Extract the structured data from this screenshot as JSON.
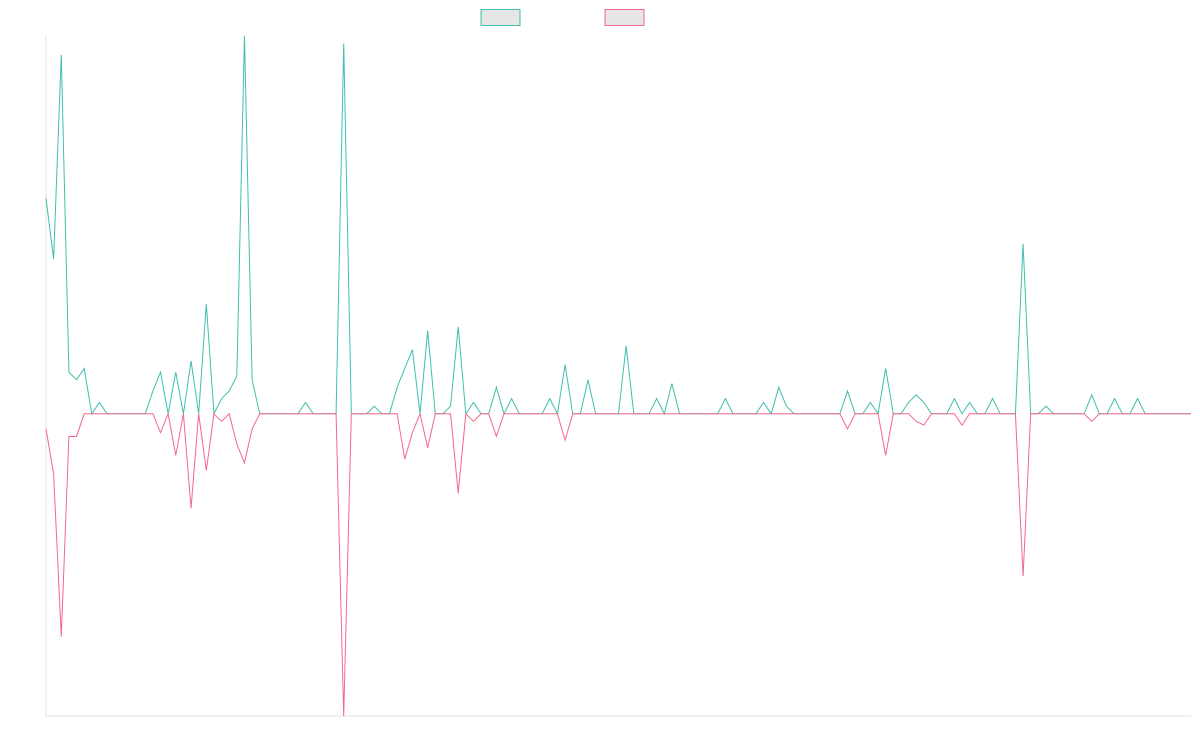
{
  "chart_data": {
    "type": "line",
    "categories": [
      null,
      null,
      null,
      null,
      null,
      null,
      null,
      null,
      null,
      null,
      null,
      null,
      null,
      null,
      null,
      null,
      null,
      null,
      null,
      null,
      null,
      null,
      null,
      null,
      null,
      null,
      null,
      null,
      null,
      null,
      null,
      null,
      null,
      null,
      null,
      null,
      null,
      null,
      null,
      null,
      null,
      null,
      null,
      null,
      null,
      null,
      null,
      null,
      null,
      null,
      null,
      null,
      null,
      null,
      null,
      null,
      null,
      null,
      null,
      null,
      null,
      null,
      null,
      null,
      null,
      null,
      null,
      null,
      null,
      null,
      null,
      null,
      null,
      null,
      null,
      null,
      null,
      null,
      null,
      null,
      null,
      null,
      null,
      null,
      null,
      null,
      null,
      null,
      null,
      null,
      null,
      null,
      null,
      null,
      null,
      null,
      null,
      null,
      null,
      null,
      null,
      null,
      null,
      null,
      null,
      null,
      null,
      null,
      null,
      null,
      null,
      null,
      null,
      null,
      null,
      null,
      null,
      null,
      null,
      null,
      null,
      null,
      null,
      null,
      null,
      null,
      null,
      null,
      null,
      null,
      null,
      null,
      null,
      null,
      null,
      null,
      null,
      null,
      null,
      null,
      null,
      null,
      null,
      null,
      null,
      null,
      null,
      null,
      null,
      null,
      null
    ],
    "series": [
      {
        "color": "#3fbfae",
        "values": [
          57,
          41,
          95,
          11,
          9,
          12,
          0,
          3,
          0,
          0,
          0,
          0,
          0,
          0,
          6,
          11,
          0,
          11,
          0,
          14,
          0,
          29,
          0,
          4,
          6,
          10,
          100,
          9,
          0,
          0,
          0,
          0,
          0,
          0,
          3,
          0,
          0,
          0,
          0,
          98,
          0,
          0,
          0,
          2,
          0,
          0,
          7,
          12,
          17,
          0,
          22,
          0,
          0,
          2,
          23,
          0,
          3,
          0,
          0,
          7,
          0,
          4,
          0,
          0,
          0,
          0,
          4,
          0,
          13,
          0,
          0,
          9,
          0,
          0,
          0,
          0,
          18,
          0,
          0,
          0,
          4,
          0,
          8,
          0,
          0,
          0,
          0,
          0,
          0,
          4,
          0,
          0,
          0,
          0,
          3,
          0,
          7,
          2,
          0,
          0,
          0,
          0,
          0,
          0,
          0,
          6,
          0,
          0,
          3,
          0,
          12,
          0,
          0,
          3,
          5,
          3,
          0,
          0,
          0,
          4,
          0,
          3,
          0,
          0,
          4,
          0,
          0,
          0,
          45,
          0,
          0,
          2,
          0,
          0,
          0,
          0,
          0,
          5,
          0,
          0,
          4,
          0,
          0,
          4,
          0,
          0,
          0,
          0,
          0,
          0,
          0
        ]
      },
      {
        "color": "#f4678a",
        "values": [
          -4,
          -16,
          -59,
          -6,
          -6,
          0,
          0,
          0,
          0,
          0,
          0,
          0,
          0,
          0,
          0,
          -5,
          0,
          -11,
          0,
          -25,
          0,
          -15,
          0,
          -2,
          0,
          -8,
          -13,
          -4,
          0,
          0,
          0,
          0,
          0,
          0,
          0,
          0,
          0,
          0,
          0,
          -80,
          0,
          0,
          0,
          0,
          0,
          0,
          0,
          -12,
          -5,
          0,
          -9,
          0,
          0,
          0,
          -21,
          0,
          -2,
          0,
          0,
          -6,
          0,
          0,
          0,
          0,
          0,
          0,
          0,
          0,
          -7,
          0,
          0,
          0,
          0,
          0,
          0,
          0,
          0,
          0,
          0,
          0,
          0,
          0,
          0,
          0,
          0,
          0,
          0,
          0,
          0,
          0,
          0,
          0,
          0,
          0,
          0,
          0,
          0,
          0,
          0,
          0,
          0,
          0,
          0,
          0,
          0,
          -4,
          0,
          0,
          0,
          0,
          -11,
          0,
          0,
          0,
          -2,
          -3,
          0,
          0,
          0,
          0,
          -3,
          0,
          0,
          0,
          0,
          0,
          0,
          0,
          -43,
          0,
          0,
          0,
          0,
          0,
          0,
          0,
          0,
          -2,
          0,
          0,
          0,
          0,
          0,
          0,
          0,
          0,
          0,
          0,
          0,
          0,
          0
        ]
      }
    ],
    "ylim": [
      -80,
      100
    ],
    "legend": "top"
  }
}
